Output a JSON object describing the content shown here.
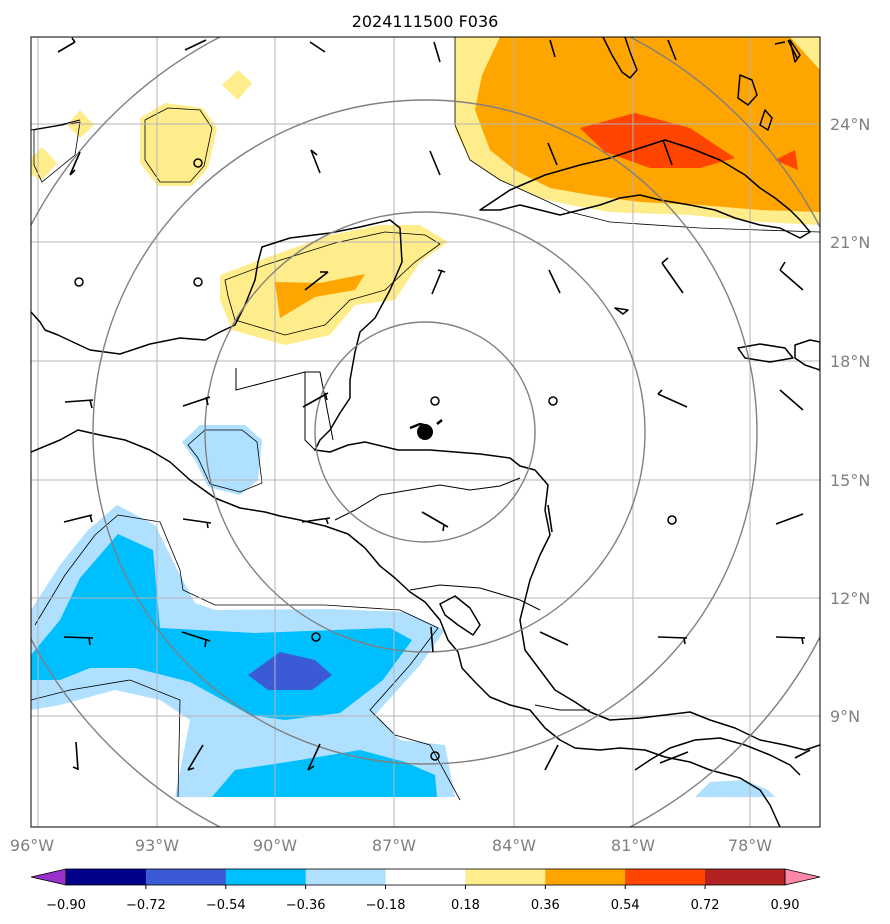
{
  "title": "2024111500 F036",
  "map": {
    "lon_range": [
      -96.2,
      -76.7
    ],
    "lat_range": [
      5.8,
      26.3
    ],
    "lon_ticks": [
      -96,
      -93,
      -90,
      -87,
      -84,
      -81,
      -78
    ],
    "lat_ticks": [
      9,
      12,
      15,
      18,
      21,
      24
    ],
    "lon_labels": [
      "96°W",
      "93°W",
      "90°W",
      "87°W",
      "84°W",
      "81°W",
      "78°W"
    ],
    "lat_labels": [
      "9°N",
      "12°N",
      "15°N",
      "18°N",
      "21°N",
      "24°N"
    ],
    "storm_center": {
      "lon": -86.0,
      "lat": 16.2
    },
    "range_rings_deg": [
      3,
      6,
      9,
      12
    ],
    "grid": true
  },
  "colorbar": {
    "levels": [
      -0.9,
      -0.72,
      -0.54,
      -0.36,
      -0.18,
      0.18,
      0.36,
      0.54,
      0.72,
      0.9
    ],
    "labels": [
      "−0.90",
      "−0.72",
      "−0.54",
      "−0.36",
      "−0.18",
      "0.18",
      "0.36",
      "0.54",
      "0.72",
      "0.90"
    ],
    "colors": [
      "#9932cc",
      "#00008b",
      "#3a5ad6",
      "#00bfff",
      "#b0e0ff",
      "#ffffff",
      "#ffec8b",
      "#ffa500",
      "#ff4500",
      "#b22222",
      "#ff88aa"
    ],
    "extend": "both"
  }
}
